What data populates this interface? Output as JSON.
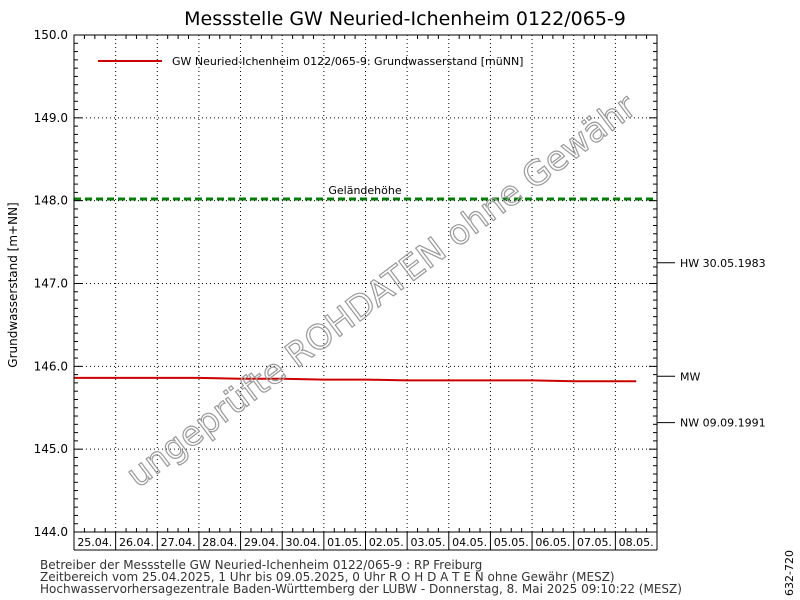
{
  "chart_data": {
    "type": "line",
    "title": "Messstelle GW Neuried-Ichenheim 0122/065-9",
    "ylabel": "Grundwasserstand [m+NN]",
    "ylim": [
      144.0,
      150.0
    ],
    "y_ticks": [
      "144.0",
      "145.0",
      "146.0",
      "147.0",
      "148.0",
      "149.0",
      "150.0"
    ],
    "categories": [
      "25.04.",
      "26.04.",
      "27.04.",
      "28.04.",
      "29.04.",
      "30.04.",
      "01.05.",
      "02.05.",
      "03.05.",
      "04.05.",
      "05.05.",
      "06.05.",
      "07.05.",
      "08.05."
    ],
    "xlim": [
      0,
      14
    ],
    "grid": true,
    "legend_position": "top-left",
    "series": [
      {
        "name": "GW Neuried-Ichenheim 0122/065-9: Grundwasserstand  [müNN]",
        "color": "#cc0000",
        "x": [
          0,
          1,
          2,
          3,
          4,
          5,
          6,
          7,
          8,
          9,
          10,
          11,
          12,
          13,
          13.5
        ],
        "values": [
          145.86,
          145.86,
          145.86,
          145.86,
          145.85,
          145.85,
          145.84,
          145.84,
          145.83,
          145.83,
          145.83,
          145.83,
          145.82,
          145.82,
          145.82
        ]
      }
    ],
    "reference_lines": [
      {
        "label": "Geländehöhe",
        "value": 148.02,
        "color": "#008000"
      }
    ],
    "right_markers": [
      {
        "label": "HW 30.05.1983",
        "value": 147.25
      },
      {
        "label": "MW",
        "value": 145.88
      },
      {
        "label": "NW 09.09.1991",
        "value": 145.32
      }
    ],
    "watermark": "ungeprüfte ROHDATEN ohne Gewähr"
  },
  "footer": {
    "line1": "Betreiber der Messstelle GW Neuried-Ichenheim 0122/065-9 : RP Freiburg",
    "line2": "Zeitbereich vom 25.04.2025, 1 Uhr bis 09.05.2025, 0 Uhr   R O H D A T E N ohne Gewähr (MESZ)",
    "line3": "Hochwasservorhersagezentrale Baden-Württemberg der LUBW - Donnerstag, 8. Mai 2025 09:10:22 (MESZ)"
  },
  "side_code": "632-720"
}
